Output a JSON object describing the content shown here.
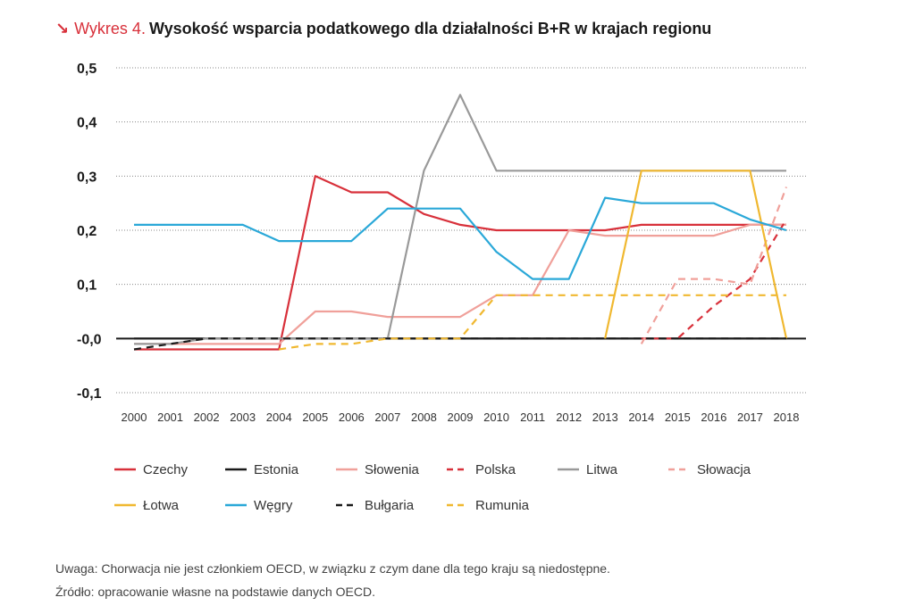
{
  "header": {
    "arrow": "↘",
    "prefix": "Wykres 4.",
    "title": "Wysokość wsparcia podatkowego dla działalności B+R w krajach regionu"
  },
  "notes": {
    "note": "Uwaga: Chorwacja nie jest członkiem OECD, w związku z czym dane dla tego kraju są niedostępne.",
    "source": "Źródło: opracowanie własne na podstawie danych OECD."
  },
  "chart_data": {
    "type": "line",
    "title": "Wysokość wsparcia podatkowego dla działalności B+R w krajach regionu",
    "xlabel": "",
    "ylabel": "",
    "x": [
      2000,
      2001,
      2002,
      2003,
      2004,
      2005,
      2006,
      2007,
      2008,
      2009,
      2010,
      2011,
      2012,
      2013,
      2014,
      2015,
      2016,
      2017,
      2018
    ],
    "ylim": [
      -0.1,
      0.5
    ],
    "yticks": [
      0.5,
      0.4,
      0.3,
      0.2,
      0.1,
      0.0,
      -0.1
    ],
    "ytick_labels": [
      "0,5",
      "0,4",
      "0,3",
      "0,2",
      "0,1",
      "-0,0",
      "-0,1"
    ],
    "grid": "horizontal dotted",
    "legend_position": "bottom",
    "series": [
      {
        "name": "Czechy",
        "color": "#d8303a",
        "dashed": false,
        "values": [
          -0.02,
          -0.02,
          -0.02,
          -0.02,
          -0.02,
          0.3,
          0.27,
          0.27,
          0.23,
          0.21,
          0.2,
          0.2,
          0.2,
          0.2,
          0.21,
          0.21,
          0.21,
          0.21,
          0.21
        ]
      },
      {
        "name": "Estonia",
        "color": "#1a1a1a",
        "dashed": false,
        "values": [
          0,
          0,
          0,
          0,
          0,
          0,
          0,
          0,
          0,
          0,
          0,
          0,
          0,
          0,
          0,
          0,
          0,
          0,
          0
        ]
      },
      {
        "name": "Słowenia",
        "color": "#f0a09a",
        "dashed": false,
        "values": [
          -0.01,
          -0.01,
          -0.01,
          -0.01,
          -0.01,
          0.05,
          0.05,
          0.04,
          0.04,
          0.04,
          0.08,
          0.08,
          0.2,
          0.19,
          0.19,
          0.19,
          0.19,
          0.21,
          0.21
        ]
      },
      {
        "name": "Polska",
        "color": "#d8303a",
        "dashed": true,
        "values": [
          null,
          null,
          null,
          null,
          null,
          null,
          null,
          null,
          null,
          null,
          null,
          null,
          null,
          null,
          0,
          0,
          0.06,
          0.11,
          0.22
        ]
      },
      {
        "name": "Litwa",
        "color": "#999999",
        "dashed": false,
        "values": [
          -0.01,
          -0.01,
          0,
          0,
          0,
          0,
          0,
          0,
          0.31,
          0.45,
          0.31,
          0.31,
          0.31,
          0.31,
          0.31,
          0.31,
          0.31,
          0.31,
          0.31
        ]
      },
      {
        "name": "Słowacja",
        "color": "#f0a09a",
        "dashed": true,
        "values": [
          null,
          null,
          null,
          null,
          null,
          null,
          null,
          null,
          null,
          null,
          null,
          null,
          null,
          null,
          -0.01,
          0.11,
          0.11,
          0.1,
          0.28
        ]
      },
      {
        "name": "Łotwa",
        "color": "#f0b830",
        "dashed": false,
        "values": [
          null,
          null,
          null,
          null,
          null,
          null,
          null,
          null,
          null,
          null,
          null,
          null,
          null,
          0,
          0.31,
          0.31,
          0.31,
          0.31,
          0
        ]
      },
      {
        "name": "Węgry",
        "color": "#2aa8d8",
        "dashed": false,
        "values": [
          0.21,
          0.21,
          0.21,
          0.21,
          0.18,
          0.18,
          0.18,
          0.24,
          0.24,
          0.24,
          0.16,
          0.11,
          0.11,
          0.26,
          0.25,
          0.25,
          0.25,
          0.22,
          0.2
        ]
      },
      {
        "name": "Bułgaria",
        "color": "#1a1a1a",
        "dashed": true,
        "values": [
          -0.02,
          -0.01,
          0,
          0,
          0,
          0,
          0,
          0,
          0,
          0,
          0,
          0,
          0,
          0,
          0,
          0,
          0,
          0,
          0
        ]
      },
      {
        "name": "Rumunia",
        "color": "#f0b830",
        "dashed": true,
        "values": [
          null,
          null,
          null,
          null,
          -0.02,
          -0.01,
          -0.01,
          0,
          0,
          0,
          0.08,
          0.08,
          0.08,
          0.08,
          0.08,
          0.08,
          0.08,
          0.08,
          0.08
        ]
      }
    ]
  }
}
